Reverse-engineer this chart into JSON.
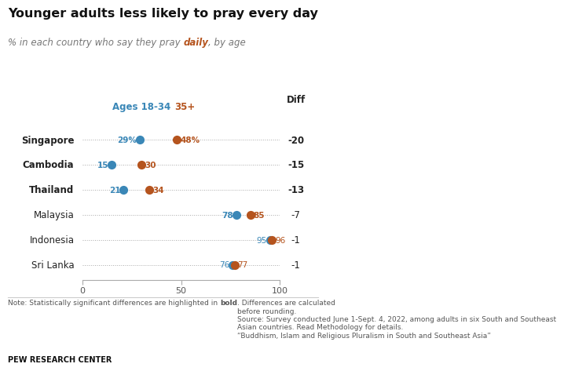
{
  "title": "Younger adults less likely to pray every day",
  "subtitle_plain": "% in each country who say they pray ",
  "subtitle_bold": "daily",
  "subtitle_end": ", by age",
  "legend_young": "Ages 18-34",
  "legend_old": "35+",
  "diff_label": "Diff",
  "countries": [
    "Singapore",
    "Cambodia",
    "Thailand",
    "Malaysia",
    "Indonesia",
    "Sri Lanka"
  ],
  "young_vals": [
    29,
    15,
    21,
    78,
    95,
    76
  ],
  "old_vals": [
    48,
    30,
    34,
    85,
    96,
    77
  ],
  "diffs": [
    "-20",
    "-15",
    "-13",
    "-7",
    "-1",
    "-1"
  ],
  "young_bold": [
    true,
    true,
    true,
    true,
    false,
    false
  ],
  "old_bold": [
    true,
    true,
    true,
    true,
    false,
    false
  ],
  "diff_bold": [
    true,
    true,
    true,
    false,
    false,
    false
  ],
  "country_bold": [
    false,
    false,
    false,
    false,
    false,
    false
  ],
  "color_young": "#3a87b7",
  "color_old": "#b5541e",
  "dot_size": 65,
  "xlim": [
    0,
    100
  ],
  "note_text1": "Note: Statistically significant differences are highlighted in ",
  "note_bold": "bold",
  "note_text2": ". Differences are calculated\nbefore rounding.\nSource: Survey conducted June 1-Sept. 4, 2022, among adults in six South and Southeast\nAsian countries. Read Methodology for details.\n“Buddhism, Islam and Religious Pluralism in South and Southeast Asia”",
  "source_label": "PEW RESEARCH CENTER",
  "bg_color": "#ffffff",
  "country_label_color": "#222222",
  "subtitle_color": "#777777",
  "title_color": "#111111"
}
